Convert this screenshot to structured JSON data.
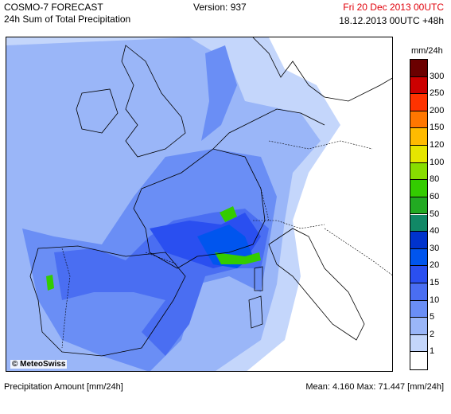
{
  "header": {
    "model": "COSMO-7 FORECAST",
    "product": "24h Sum of Total Precipitation",
    "version": "Version: 937",
    "valid_time": "Fri 20 Dec 2013 00UTC",
    "run_time": "18.12.2013 00UTC +48h"
  },
  "map": {
    "copyright": "© MeteoSwiss"
  },
  "legend": {
    "unit": "mm/24h",
    "levels": [
      {
        "label": "300",
        "color": "#6b0000"
      },
      {
        "label": "250",
        "color": "#cc0000"
      },
      {
        "label": "200",
        "color": "#ff3300"
      },
      {
        "label": "150",
        "color": "#ff7700"
      },
      {
        "label": "120",
        "color": "#ffbb00"
      },
      {
        "label": "100",
        "color": "#e6e600"
      },
      {
        "label": "80",
        "color": "#88dd00"
      },
      {
        "label": "60",
        "color": "#33cc00"
      },
      {
        "label": "50",
        "color": "#22aa22"
      },
      {
        "label": "40",
        "color": "#118866"
      },
      {
        "label": "30",
        "color": "#0033cc"
      },
      {
        "label": "20",
        "color": "#0055ee"
      },
      {
        "label": "15",
        "color": "#2a4ff0"
      },
      {
        "label": "10",
        "color": "#4a6ef2"
      },
      {
        "label": "5",
        "color": "#6a8ef5"
      },
      {
        "label": "2",
        "color": "#9ab6f8"
      },
      {
        "label": "1",
        "color": "#c4d6fb"
      },
      {
        "label": "",
        "color": "#ffffff"
      }
    ]
  },
  "footer": {
    "variable": "Precipitation Amount [mm/24h]",
    "stats": "Mean:   4.160 Max:  71.447 [mm/24h]"
  }
}
